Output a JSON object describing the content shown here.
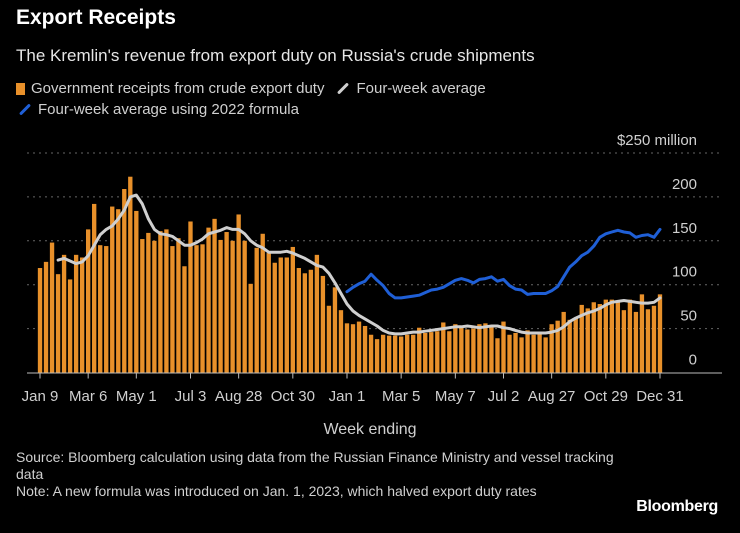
{
  "colors": {
    "bars": "#e8902a",
    "avg": "#cfcfcf",
    "avg2022": "#1f5fd6",
    "grid": "#666666",
    "background": "#000000"
  },
  "header": {
    "title": "Export Receipts",
    "subtitle": "The Kremlin's revenue from export duty on Russia's crude shipments"
  },
  "legend": [
    {
      "label": "Government receipts from crude export duty"
    },
    {
      "label": "Four-week average"
    },
    {
      "label": "Four-week average using 2022 formula"
    }
  ],
  "footer": {
    "source": "Source: Bloomberg calculation using data from the Russian Finance Ministry and vessel tracking data",
    "note": "Note: A new formula was introduced on Jan. 1, 2023, which halved export duty rates",
    "logo": "Bloomberg"
  },
  "chart_data": {
    "type": "bar",
    "title": "Export Receipts",
    "xlabel": "Week ending",
    "ylabel": "$250 million",
    "ylim": [
      0,
      250
    ],
    "yticks": [
      {
        "v": 0,
        "label": "0"
      },
      {
        "v": 50,
        "label": "50"
      },
      {
        "v": 100,
        "label": "100"
      },
      {
        "v": 150,
        "label": "150"
      },
      {
        "v": 200,
        "label": "200"
      },
      {
        "v": 250,
        "label": "$250 million"
      }
    ],
    "xticks": [
      "Jan 9",
      "Mar 6",
      "May 1",
      "Jul 3",
      "Aug 28",
      "Oct 30",
      "Jan 1",
      "Mar 5",
      "May 7",
      "Jul 2",
      "Aug 27",
      "Oct 29",
      "Dec 31"
    ],
    "grid": true,
    "legend_position": "top-left",
    "series": [
      {
        "name": "Government receipts from crude export duty",
        "type": "bar",
        "values": [
          119,
          126,
          148,
          112,
          134,
          106,
          134,
          131,
          163,
          192,
          145,
          144,
          189,
          186,
          209,
          223,
          184,
          152,
          159,
          150,
          161,
          163,
          144,
          153,
          121,
          172,
          145,
          146,
          165,
          175,
          151,
          160,
          150,
          180,
          150,
          101,
          142,
          158,
          136,
          125,
          131,
          131,
          143,
          119,
          113,
          117,
          134,
          110,
          76,
          97,
          71,
          56,
          55,
          58,
          53,
          43,
          38,
          43,
          42,
          42,
          41,
          43,
          43,
          51,
          45,
          46,
          47,
          57,
          47,
          55,
          51,
          49,
          50,
          55,
          56,
          54,
          39,
          58,
          43,
          45,
          40,
          48,
          43,
          45,
          40,
          55,
          59,
          69,
          60,
          62,
          77,
          73,
          80,
          78,
          83,
          83,
          80,
          71,
          83,
          69,
          89,
          72,
          76,
          89
        ]
      },
      {
        "name": "Four-week average",
        "type": "line",
        "values": [
          null,
          null,
          null,
          128,
          130,
          127,
          124,
          126,
          133,
          145,
          157,
          163,
          167,
          175,
          185,
          200,
          202,
          192,
          175,
          163,
          158,
          157,
          155,
          150,
          145,
          145,
          148,
          152,
          158,
          160,
          162,
          165,
          163,
          163,
          158,
          150,
          145,
          142,
          137,
          137,
          137,
          138,
          136,
          133,
          130,
          126,
          122,
          120,
          113,
          102,
          90,
          78,
          70,
          65,
          61,
          57,
          53,
          48,
          45,
          44,
          44,
          45,
          46,
          46,
          47,
          48,
          49,
          50,
          51,
          52,
          52,
          53,
          52,
          51,
          52,
          53,
          53,
          51,
          50,
          48,
          46,
          45,
          45,
          45,
          45,
          46,
          48,
          52,
          58,
          62,
          65,
          68,
          70,
          73,
          77,
          80,
          81,
          82,
          81,
          80,
          79,
          79,
          80,
          85
        ]
      },
      {
        "name": "Four-week average using 2022 formula",
        "type": "line",
        "values": [
          null,
          null,
          null,
          null,
          null,
          null,
          null,
          null,
          null,
          null,
          null,
          null,
          null,
          null,
          null,
          null,
          null,
          null,
          null,
          null,
          null,
          null,
          null,
          null,
          null,
          null,
          null,
          null,
          null,
          null,
          null,
          null,
          null,
          null,
          null,
          null,
          null,
          null,
          null,
          null,
          null,
          null,
          null,
          null,
          null,
          null,
          null,
          null,
          null,
          null,
          null,
          92,
          97,
          101,
          104,
          112,
          105,
          99,
          90,
          85,
          85,
          86,
          87,
          88,
          91,
          94,
          95,
          97,
          101,
          105,
          107,
          105,
          102,
          106,
          107,
          109,
          104,
          106,
          99,
          95,
          94,
          89,
          90,
          90,
          90,
          93,
          98,
          109,
          120,
          126,
          133,
          137,
          144,
          154,
          158,
          160,
          162,
          160,
          159,
          154,
          156,
          157,
          154,
          163
        ]
      }
    ]
  }
}
